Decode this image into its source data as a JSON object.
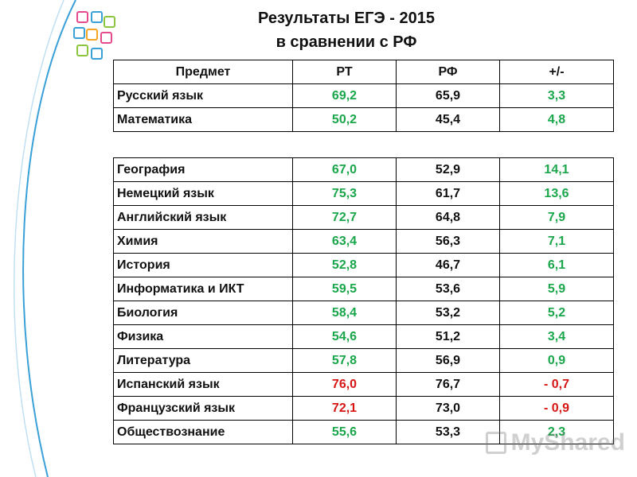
{
  "title": {
    "line1": "Результаты ЕГЭ - 2015",
    "line2": "в сравнении с РФ"
  },
  "columns": [
    "Предмет",
    "РТ",
    "РФ",
    "+/-"
  ],
  "colors": {
    "green": "#1aa64a",
    "red": "#d61515",
    "curve": "#3aa0d8"
  },
  "group1": [
    {
      "subject": "Русский язык",
      "rt": "69,2",
      "rf": "65,9",
      "diff": "3,3",
      "rt_color": "green",
      "diff_color": "green"
    },
    {
      "subject": "Математика",
      "rt": "50,2",
      "rf": "45,4",
      "diff": "4,8",
      "rt_color": "green",
      "diff_color": "green"
    }
  ],
  "group2": [
    {
      "subject": "География",
      "rt": "67,0",
      "rf": "52,9",
      "diff": "14,1",
      "rt_color": "green",
      "diff_color": "green"
    },
    {
      "subject": "Немецкий язык",
      "rt": "75,3",
      "rf": "61,7",
      "diff": "13,6",
      "rt_color": "green",
      "diff_color": "green"
    },
    {
      "subject": "Английский язык",
      "rt": "72,7",
      "rf": "64,8",
      "diff": "7,9",
      "rt_color": "green",
      "diff_color": "green"
    },
    {
      "subject": "Химия",
      "rt": "63,4",
      "rf": "56,3",
      "diff": "7,1",
      "rt_color": "green",
      "diff_color": "green"
    },
    {
      "subject": "История",
      "rt": "52,8",
      "rf": "46,7",
      "diff": "6,1",
      "rt_color": "green",
      "diff_color": "green"
    },
    {
      "subject": "Информатика и ИКТ",
      "rt": "59,5",
      "rf": "53,6",
      "diff": "5,9",
      "rt_color": "green",
      "diff_color": "green"
    },
    {
      "subject": "Биология",
      "rt": "58,4",
      "rf": "53,2",
      "diff": "5,2",
      "rt_color": "green",
      "diff_color": "green"
    },
    {
      "subject": "Физика",
      "rt": "54,6",
      "rf": "51,2",
      "diff": "3,4",
      "rt_color": "green",
      "diff_color": "green"
    },
    {
      "subject": "Литература",
      "rt": "57,8",
      "rf": "56,9",
      "diff": "0,9",
      "rt_color": "green",
      "diff_color": "green"
    },
    {
      "subject": "Испанский язык",
      "rt": "76,0",
      "rf": "76,7",
      "diff": "- 0,7",
      "rt_color": "red",
      "diff_color": "red"
    },
    {
      "subject": "Французский язык",
      "rt": "72,1",
      "rf": "73,0",
      "diff": "- 0,9",
      "rt_color": "red",
      "diff_color": "red"
    },
    {
      "subject": "Обществознание",
      "rt": "55,6",
      "rf": "53,3",
      "diff": "2,3",
      "rt_color": "green",
      "diff_color": "green"
    }
  ],
  "logo_icon": "education-logo-icon",
  "watermark": {
    "text": "MyShared",
    "icon": "presentation-board-icon"
  }
}
